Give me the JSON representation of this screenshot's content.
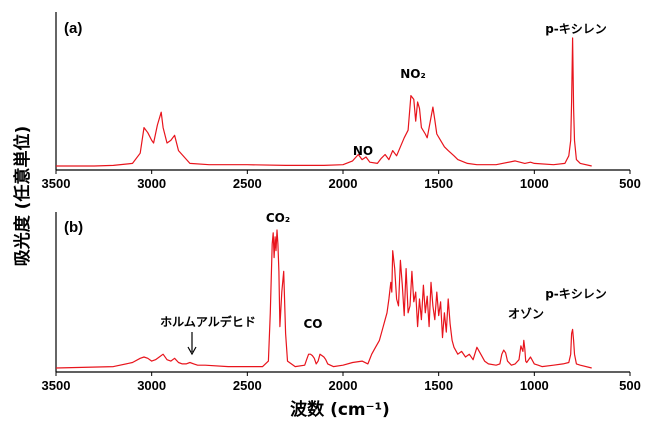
{
  "ylabel": "吸光度 (任意単位)",
  "xlabel": "波数 (cm⁻¹)",
  "colors": {
    "line": "#e8141c",
    "axis": "#000000"
  },
  "chart_data": [
    {
      "panel_label": "(a)",
      "type": "line",
      "xlim": [
        3500,
        500
      ],
      "x_ticks": [
        "3500",
        "3000",
        "2500",
        "2000",
        "1500",
        "1000",
        "500"
      ],
      "grid": false,
      "annotations": [
        {
          "text": "NO",
          "x": 1900
        },
        {
          "text": "NO₂",
          "x": 1630
        },
        {
          "text": "p-キシレン",
          "x": 800
        }
      ],
      "series": [
        {
          "x": [
            3500,
            3300,
            3200,
            3100,
            3060,
            3040,
            3020,
            3000,
            2990,
            2970,
            2950,
            2940,
            2920,
            2900,
            2880,
            2860,
            2800,
            2700,
            2500,
            2300,
            2100,
            2000,
            1950,
            1920,
            1900,
            1880,
            1860,
            1820,
            1800,
            1780,
            1760,
            1740,
            1720,
            1700,
            1680,
            1660,
            1645,
            1630,
            1620,
            1610,
            1600,
            1590,
            1570,
            1560,
            1550,
            1530,
            1520,
            1510,
            1490,
            1470,
            1450,
            1420,
            1400,
            1350,
            1300,
            1200,
            1100,
            1050,
            1020,
            1000,
            900,
            840,
            820,
            810,
            805,
            800,
            795,
            790,
            780,
            760,
            700
          ],
          "y": [
            0,
            0,
            0.005,
            0.02,
            0.1,
            0.3,
            0.26,
            0.2,
            0.18,
            0.32,
            0.42,
            0.3,
            0.18,
            0.2,
            0.24,
            0.12,
            0.02,
            0.01,
            0.01,
            0.005,
            0.005,
            0.01,
            0.04,
            0.09,
            0.05,
            0.07,
            0.03,
            0.02,
            0.06,
            0.09,
            0.05,
            0.12,
            0.08,
            0.15,
            0.22,
            0.28,
            0.55,
            0.52,
            0.35,
            0.5,
            0.45,
            0.3,
            0.25,
            0.22,
            0.3,
            0.46,
            0.36,
            0.25,
            0.2,
            0.15,
            0.12,
            0.08,
            0.05,
            0.02,
            0.01,
            0.01,
            0.04,
            0.02,
            0.03,
            0.02,
            0.01,
            0.02,
            0.08,
            0.2,
            0.5,
            1.0,
            0.45,
            0.2,
            0.05,
            0.02,
            0
          ]
        }
      ]
    },
    {
      "panel_label": "(b)",
      "type": "line",
      "xlim": [
        3500,
        500
      ],
      "x_ticks": [
        "3500",
        "3000",
        "2500",
        "2000",
        "1500",
        "1000",
        "500"
      ],
      "grid": false,
      "annotations": [
        {
          "text": "ホルムアルデヒド",
          "x": 2780
        },
        {
          "text": "CO₂",
          "x": 2350
        },
        {
          "text": "CO",
          "x": 2140
        },
        {
          "text": "オゾン",
          "x": 1060
        },
        {
          "text": "p-キシレン",
          "x": 800
        }
      ],
      "series": [
        {
          "x": [
            3500,
            3200,
            3100,
            3060,
            3040,
            3020,
            3000,
            2980,
            2960,
            2940,
            2920,
            2900,
            2880,
            2860,
            2840,
            2820,
            2800,
            2780,
            2760,
            2720,
            2600,
            2500,
            2420,
            2390,
            2380,
            2370,
            2365,
            2360,
            2355,
            2350,
            2345,
            2340,
            2335,
            2330,
            2320,
            2310,
            2300,
            2290,
            2250,
            2200,
            2190,
            2180,
            2170,
            2160,
            2150,
            2140,
            2130,
            2120,
            2110,
            2100,
            2090,
            2080,
            2050,
            2000,
            1950,
            1900,
            1870,
            1850,
            1830,
            1810,
            1800,
            1790,
            1780,
            1770,
            1760,
            1750,
            1745,
            1740,
            1730,
            1720,
            1710,
            1700,
            1690,
            1680,
            1670,
            1660,
            1650,
            1640,
            1630,
            1620,
            1610,
            1600,
            1590,
            1580,
            1570,
            1560,
            1550,
            1540,
            1530,
            1520,
            1510,
            1500,
            1490,
            1480,
            1470,
            1460,
            1450,
            1440,
            1430,
            1420,
            1400,
            1380,
            1360,
            1340,
            1320,
            1300,
            1280,
            1260,
            1240,
            1200,
            1180,
            1170,
            1160,
            1150,
            1140,
            1120,
            1100,
            1080,
            1070,
            1060,
            1055,
            1050,
            1045,
            1040,
            1020,
            1000,
            980,
            960,
            900,
            850,
            820,
            810,
            805,
            800,
            795,
            790,
            780,
            760,
            700
          ],
          "y": [
            0,
            0.01,
            0.04,
            0.07,
            0.08,
            0.07,
            0.05,
            0.06,
            0.08,
            0.1,
            0.06,
            0.05,
            0.07,
            0.04,
            0.03,
            0.03,
            0.04,
            0.03,
            0.02,
            0.02,
            0.01,
            0.01,
            0.01,
            0.05,
            0.4,
            0.9,
            0.98,
            0.8,
            0.95,
            0.85,
            1.0,
            0.9,
            0.7,
            0.3,
            0.55,
            0.7,
            0.25,
            0.05,
            0.01,
            0.02,
            0.06,
            0.1,
            0.1,
            0.09,
            0.07,
            0.03,
            0.05,
            0.1,
            0.09,
            0.08,
            0.06,
            0.03,
            0.01,
            0.02,
            0.04,
            0.05,
            0.03,
            0.1,
            0.15,
            0.2,
            0.25,
            0.3,
            0.35,
            0.4,
            0.5,
            0.62,
            0.55,
            0.85,
            0.72,
            0.5,
            0.45,
            0.78,
            0.6,
            0.38,
            0.72,
            0.4,
            0.45,
            0.7,
            0.48,
            0.55,
            0.3,
            0.5,
            0.35,
            0.6,
            0.4,
            0.52,
            0.3,
            0.62,
            0.45,
            0.35,
            0.55,
            0.38,
            0.48,
            0.22,
            0.4,
            0.26,
            0.5,
            0.32,
            0.2,
            0.15,
            0.1,
            0.12,
            0.08,
            0.1,
            0.06,
            0.15,
            0.1,
            0.05,
            0.03,
            0.02,
            0.03,
            0.1,
            0.13,
            0.11,
            0.05,
            0.02,
            0.03,
            0.06,
            0.16,
            0.12,
            0.2,
            0.14,
            0.05,
            0.04,
            0.08,
            0.03,
            0.02,
            0.01,
            0.02,
            0.03,
            0.04,
            0.1,
            0.25,
            0.28,
            0.2,
            0.1,
            0.03,
            0.02,
            0
          ]
        }
      ]
    }
  ]
}
